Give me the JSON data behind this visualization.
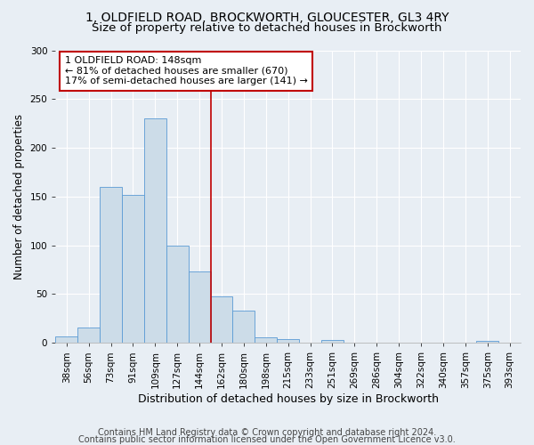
{
  "title_line1": "1, OLDFIELD ROAD, BROCKWORTH, GLOUCESTER, GL3 4RY",
  "title_line2": "Size of property relative to detached houses in Brockworth",
  "xlabel": "Distribution of detached houses by size in Brockworth",
  "ylabel": "Number of detached properties",
  "bar_color": "#ccdce8",
  "bar_edge_color": "#5b9bd5",
  "bin_labels": [
    "38sqm",
    "56sqm",
    "73sqm",
    "91sqm",
    "109sqm",
    "127sqm",
    "144sqm",
    "162sqm",
    "180sqm",
    "198sqm",
    "215sqm",
    "233sqm",
    "251sqm",
    "269sqm",
    "286sqm",
    "304sqm",
    "322sqm",
    "340sqm",
    "357sqm",
    "375sqm",
    "393sqm"
  ],
  "bar_values": [
    7,
    16,
    160,
    152,
    230,
    100,
    73,
    48,
    33,
    6,
    4,
    0,
    3,
    0,
    0,
    0,
    0,
    0,
    0,
    2,
    0
  ],
  "ylim": [
    0,
    300
  ],
  "yticks": [
    0,
    50,
    100,
    150,
    200,
    250,
    300
  ],
  "vline_x": 6.5,
  "vline_color": "#c00000",
  "annotation_text": "1 OLDFIELD ROAD: 148sqm\n← 81% of detached houses are smaller (670)\n17% of semi-detached houses are larger (141) →",
  "annotation_box_color": "#ffffff",
  "annotation_box_edge": "#c00000",
  "footer_line1": "Contains HM Land Registry data © Crown copyright and database right 2024.",
  "footer_line2": "Contains public sector information licensed under the Open Government Licence v3.0.",
  "bg_color": "#e8eef4",
  "grid_color": "#ffffff",
  "title_fontsize": 10,
  "subtitle_fontsize": 9.5,
  "xlabel_fontsize": 9,
  "ylabel_fontsize": 8.5,
  "tick_fontsize": 7.5,
  "annotation_fontsize": 8,
  "footer_fontsize": 7
}
